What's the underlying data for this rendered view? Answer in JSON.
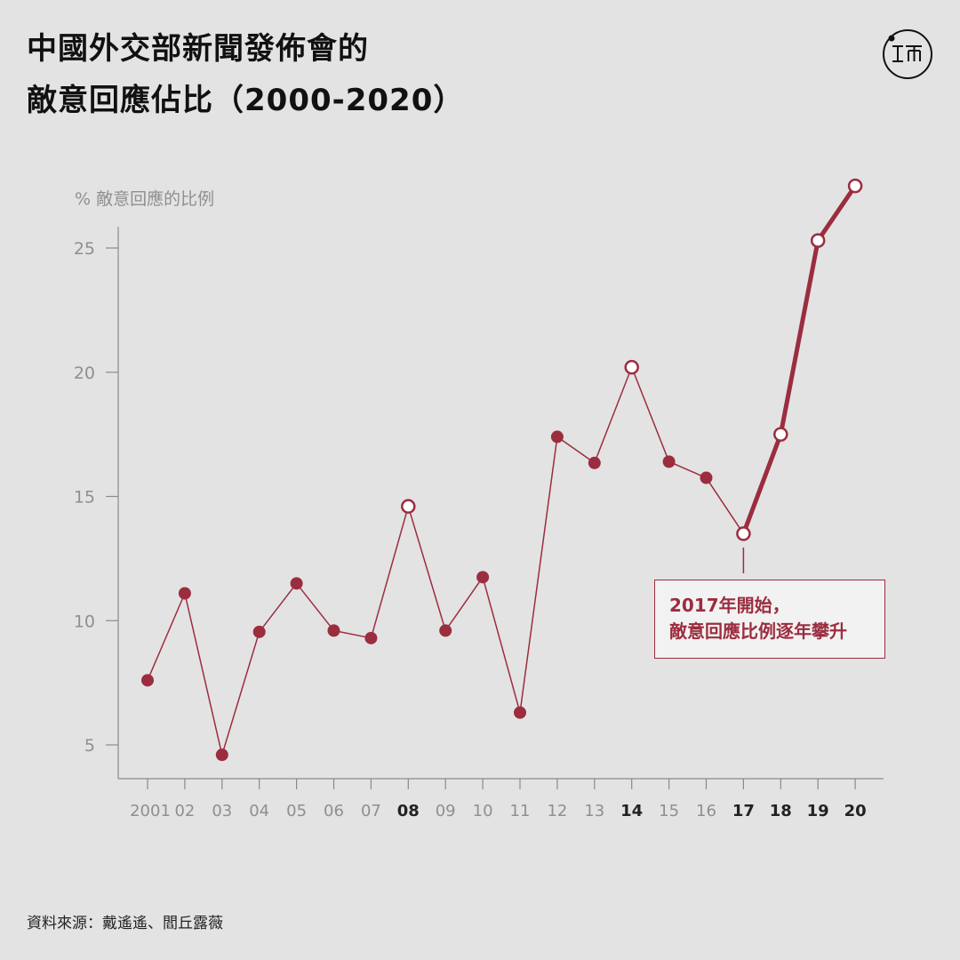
{
  "title": {
    "line1": "中國外交部新聞發佈會的",
    "line2": "敵意回應佔比（2000-2020）"
  },
  "logo_icon": "initium-logo-icon",
  "source": "資料來源：戴遙遙、閻丘露薇",
  "annotation": {
    "line1": "2017年開始，",
    "line2": "敵意回應比例逐年攀升"
  },
  "colors": {
    "accent": "#9b2d3f",
    "axis": "#8a8a8a",
    "tick_label": "#8f8f8f",
    "tick_label_bold": "#222222",
    "background": "#e3e3e3"
  },
  "chart_data": {
    "type": "line",
    "ylabel": "% 敵意回應的比例",
    "xlabel": "",
    "ylim": [
      3.5,
      26.5
    ],
    "yticks": [
      5,
      10,
      15,
      20,
      25
    ],
    "grid": false,
    "categories": [
      "2001",
      "02",
      "03",
      "04",
      "05",
      "06",
      "07",
      "08",
      "09",
      "10",
      "11",
      "12",
      "13",
      "14",
      "15",
      "16",
      "17",
      "18",
      "19",
      "20"
    ],
    "bold_categories": [
      "08",
      "14",
      "17",
      "18",
      "19",
      "20"
    ],
    "highlight_points": [
      "08",
      "14",
      "17",
      "18",
      "19",
      "20"
    ],
    "thick_from": "17",
    "series": [
      {
        "values": [
          7.6,
          11.1,
          4.6,
          9.55,
          11.5,
          9.6,
          9.3,
          14.6,
          9.6,
          11.75,
          6.3,
          17.4,
          16.35,
          20.2,
          16.4,
          15.75,
          13.5,
          17.5,
          25.3,
          27.5
        ]
      }
    ]
  }
}
